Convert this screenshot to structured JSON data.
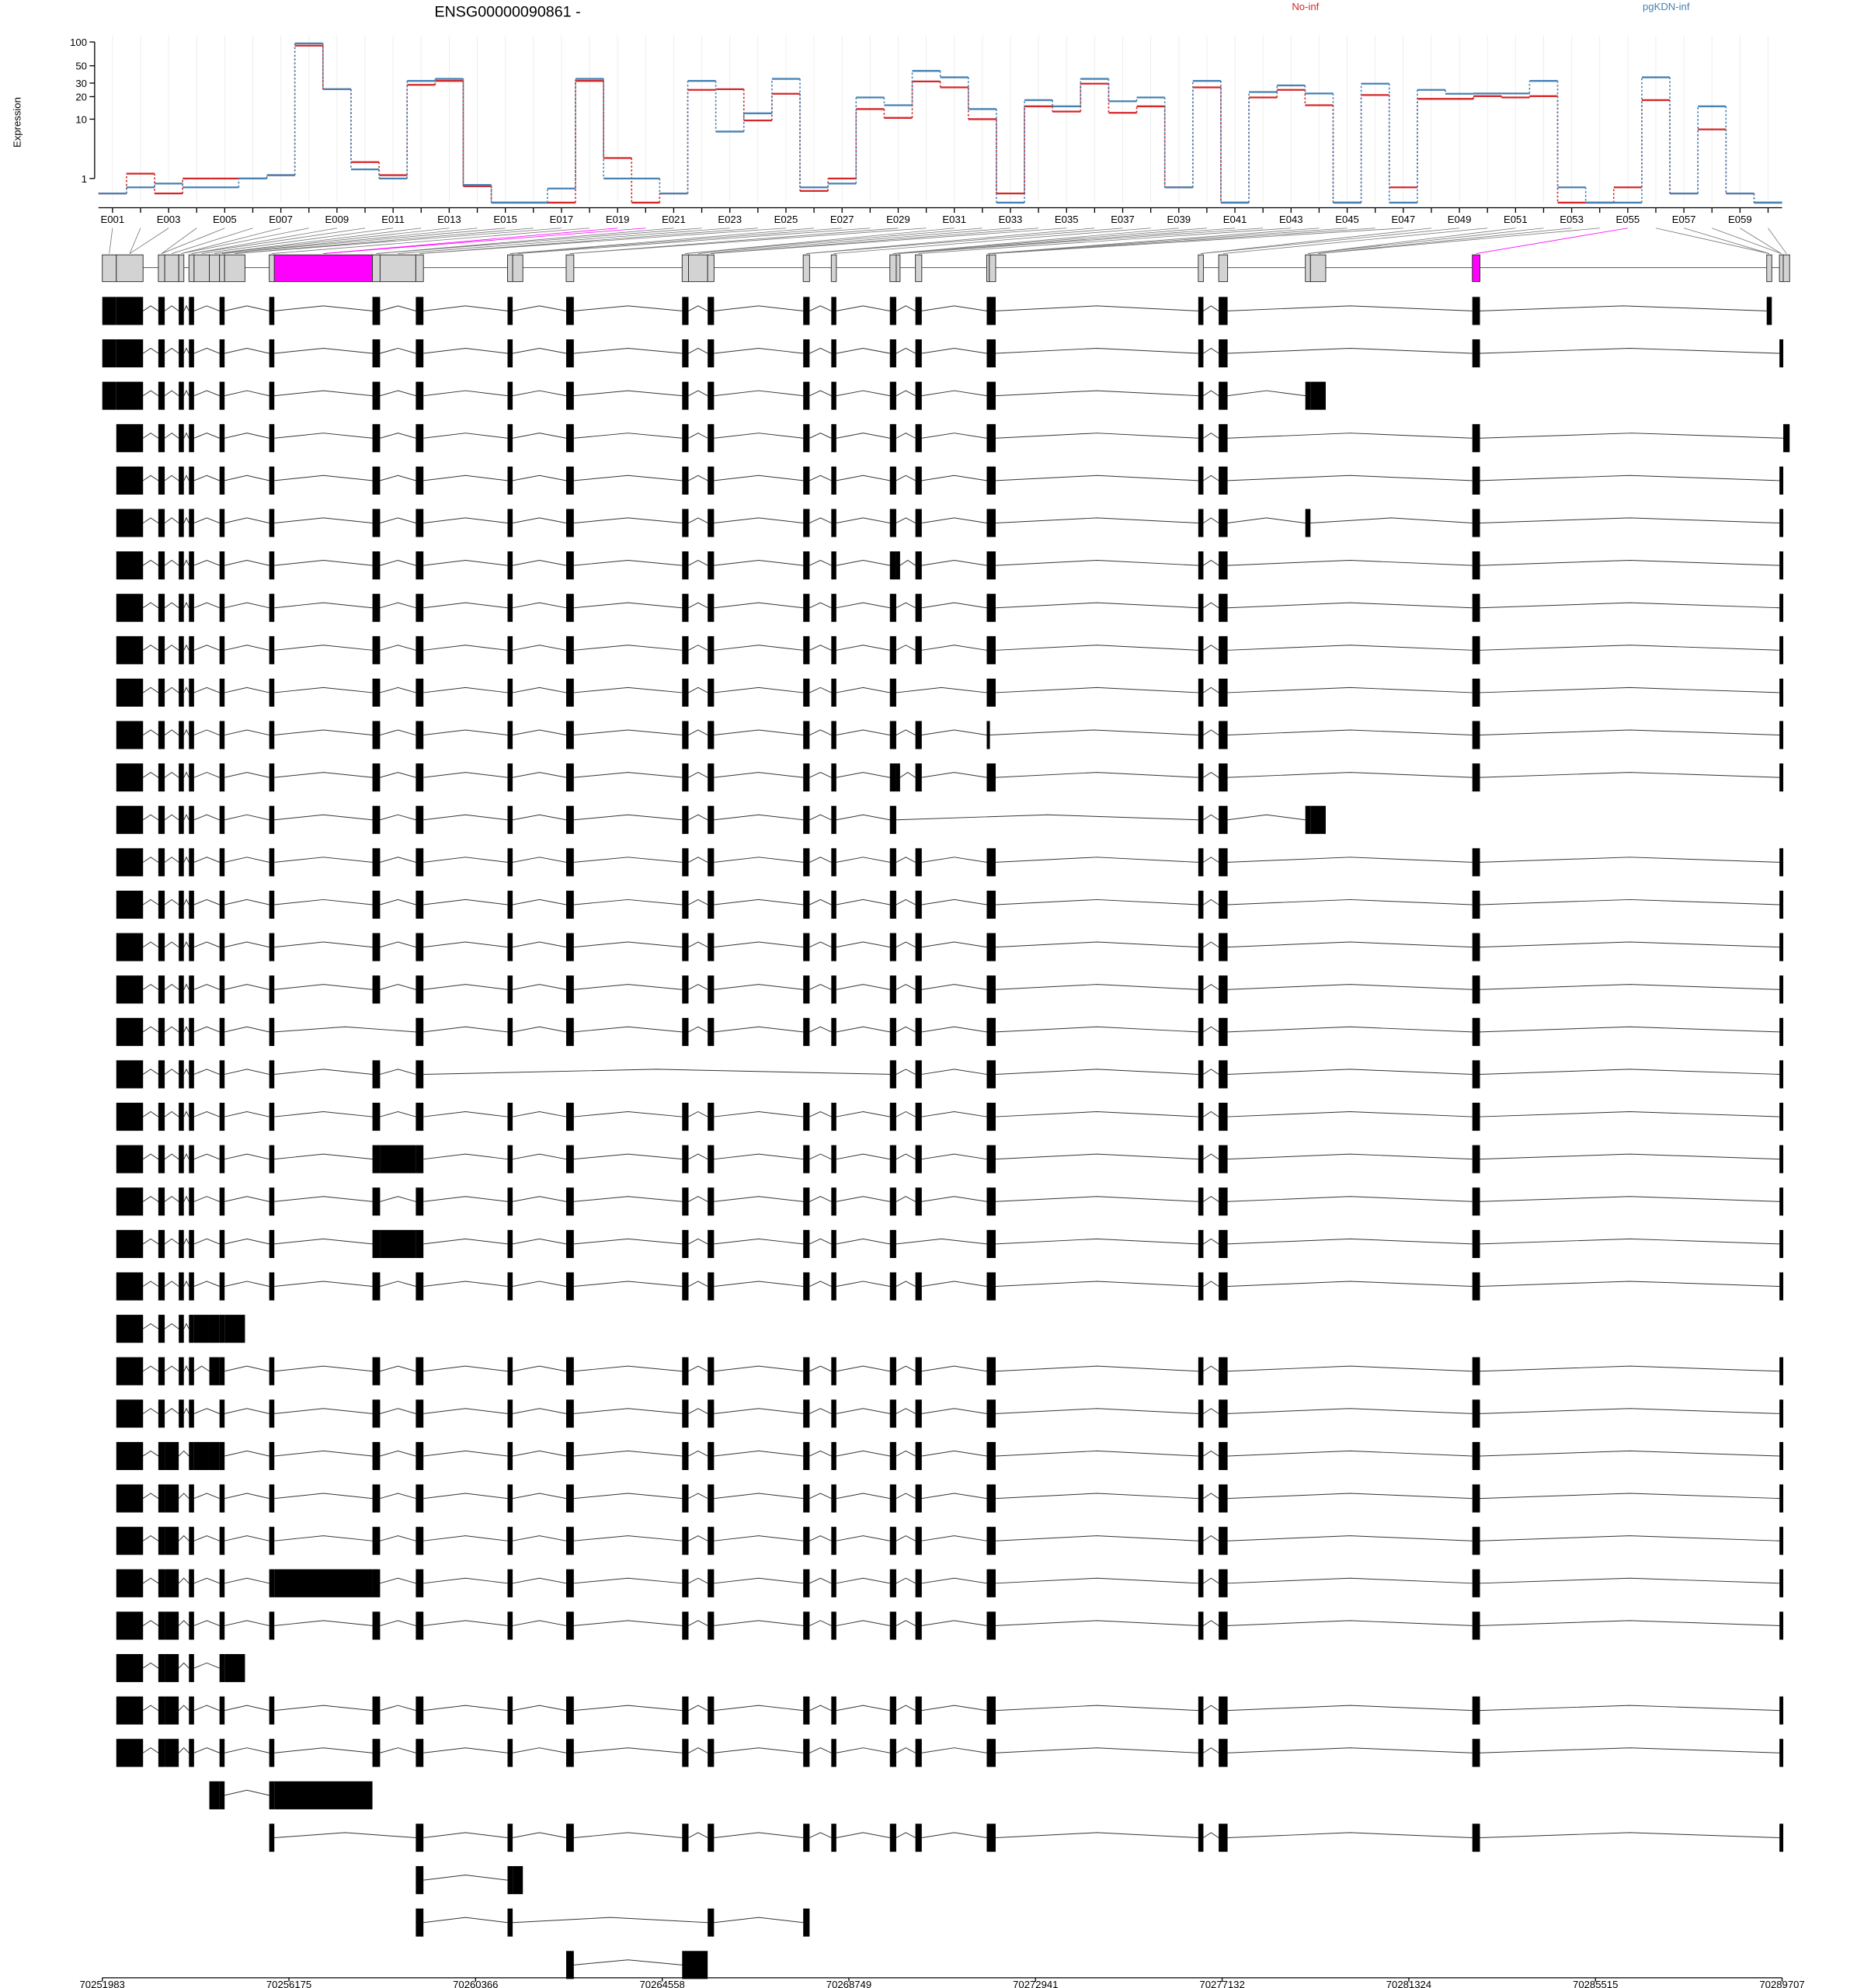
{
  "chart_data": {
    "type": "line",
    "title": "ENSG00000090861 -",
    "y_label": "Expression",
    "categories": [
      "E001",
      null,
      "E003",
      null,
      "E005",
      null,
      "E007",
      null,
      "E009",
      null,
      "E011",
      null,
      "E013",
      null,
      "E015",
      null,
      "E017",
      null,
      "E019",
      null,
      "E021",
      null,
      "E023",
      null,
      "E025",
      null,
      "E027",
      null,
      "E029",
      null,
      "E031",
      null,
      "E033",
      null,
      "E035",
      null,
      "E037",
      null,
      "E039",
      null,
      "E041",
      null,
      "E043",
      null,
      "E045",
      null,
      "E047",
      null,
      "E049",
      null,
      "E051",
      null,
      "E053",
      null,
      "E055",
      null,
      "E057",
      null,
      "E059",
      null
    ],
    "series": [
      {
        "name": "No-inf",
        "color": "#d62728",
        "values": [
          0.3,
          1.3,
          0.3,
          1.0,
          1.0,
          1.0,
          1.2,
          90,
          25,
          2.2,
          1.2,
          28.5,
          32,
          0.6,
          0,
          0,
          0,
          32,
          2.6,
          0,
          0.3,
          24.5,
          25,
          9.6,
          21.8,
          0.4,
          1.0,
          13.7,
          10.4,
          31.5,
          26.4,
          10,
          0.3,
          14.9,
          12.7,
          29.5,
          12.2,
          14.9,
          0.55,
          26.4,
          0,
          19.5,
          24.5,
          15.4,
          0,
          21,
          0.55,
          18.7,
          18.7,
          20.3,
          19.5,
          20.3,
          0,
          0,
          0.55,
          18,
          0.3,
          7.2,
          0.3,
          0
        ]
      },
      {
        "name": "pgKDN-inf",
        "color": "#4682b4",
        "values": [
          0.3,
          0.55,
          0.73,
          0.55,
          0.55,
          1.0,
          1.2,
          96,
          25,
          1.6,
          1.0,
          32,
          34,
          0.66,
          0,
          0,
          0.5,
          34,
          1.0,
          1.0,
          0.3,
          32,
          6.7,
          12,
          34,
          0.55,
          0.73,
          19.5,
          15.4,
          43,
          35.6,
          13.7,
          0,
          18,
          14.9,
          34,
          17.4,
          19.5,
          0.55,
          32,
          0,
          23,
          28,
          22,
          0,
          29.5,
          0,
          24.5,
          21.8,
          22,
          22,
          32,
          0.55,
          0,
          0,
          35.6,
          0.3,
          14.9,
          0.3,
          0
        ]
      }
    ],
    "ylim": [
      0,
      120
    ],
    "yticks": [
      1,
      10,
      20,
      30,
      50,
      100
    ],
    "yscale": "log1p",
    "grid": true,
    "legend": "top-right"
  },
  "gene_model": {
    "xlim": [
      70251983,
      70289707
    ],
    "xticks": [
      70251983,
      70256175,
      70260366,
      70264558,
      70268749,
      70272941,
      70277132,
      70281324,
      70285515,
      70289707
    ],
    "exon_bins": [
      [
        70251983,
        70252298
      ],
      [
        70252298,
        70252899
      ],
      [
        70253242,
        70253385
      ],
      [
        70253385,
        70253700
      ],
      [
        70253700,
        70253815
      ],
      [
        70253929,
        70254044
      ],
      [
        70254044,
        70254387
      ],
      [
        70254387,
        70254616
      ],
      [
        70254616,
        70254730
      ],
      [
        70254730,
        70255188
      ],
      [
        70255732,
        70255847
      ],
      [
        70255847,
        70258050
      ],
      [
        70258050,
        70258222
      ],
      [
        70258222,
        70259024
      ],
      [
        70259024,
        70259195
      ],
      [
        70261084,
        70261199
      ],
      [
        70261199,
        70261428
      ],
      [
        70262401,
        70262572
      ],
      [
        70265005,
        70265148
      ],
      [
        70265148,
        70265578
      ],
      [
        70265578,
        70265721
      ],
      [
        70267724,
        70267867
      ],
      [
        70268354,
        70268468
      ],
      [
        70269670,
        70269813
      ],
      [
        70269813,
        70269899
      ],
      [
        70270243,
        70270386
      ],
      [
        70271845,
        70271903
      ],
      [
        70271903,
        70272046
      ],
      [
        70276596,
        70276711
      ],
      [
        70277054,
        70277254
      ],
      [
        70279000,
        70279115
      ],
      [
        70279115,
        70279458
      ],
      [
        70282750,
        70282921
      ],
      [
        70289361,
        70289475
      ],
      [
        70289647,
        70289733
      ],
      [
        70289733,
        70289876
      ]
    ],
    "highlighted_bins": [
      11,
      32
    ],
    "highlight_color": "#ff00ff",
    "transcripts": [
      [
        0,
        1,
        2,
        4,
        5,
        8,
        10,
        12,
        14,
        15,
        17,
        18,
        20,
        21,
        22,
        23,
        25,
        26,
        27,
        28,
        29,
        32,
        33
      ],
      [
        0,
        1,
        2,
        4,
        5,
        8,
        10,
        12,
        14,
        15,
        17,
        18,
        20,
        21,
        22,
        23,
        25,
        26,
        27,
        28,
        29,
        32,
        34
      ],
      [
        0,
        1,
        2,
        4,
        5,
        8,
        10,
        12,
        14,
        15,
        17,
        18,
        20,
        21,
        22,
        23,
        25,
        26,
        27,
        28,
        29,
        30,
        31
      ],
      [
        1,
        2,
        4,
        5,
        8,
        10,
        12,
        14,
        15,
        17,
        18,
        20,
        21,
        22,
        23,
        25,
        26,
        27,
        28,
        29,
        32,
        35
      ],
      [
        1,
        2,
        4,
        5,
        8,
        10,
        12,
        14,
        15,
        17,
        18,
        20,
        21,
        22,
        23,
        25,
        26,
        27,
        28,
        29,
        32,
        34
      ],
      [
        1,
        2,
        4,
        5,
        8,
        10,
        12,
        14,
        15,
        17,
        18,
        20,
        21,
        22,
        23,
        25,
        26,
        27,
        28,
        29,
        30,
        32,
        34
      ],
      [
        1,
        2,
        4,
        5,
        8,
        10,
        12,
        14,
        15,
        17,
        18,
        20,
        21,
        22,
        23,
        24,
        25,
        26,
        27,
        28,
        29,
        32,
        34
      ],
      [
        1,
        2,
        4,
        5,
        8,
        10,
        12,
        14,
        15,
        17,
        18,
        20,
        21,
        22,
        23,
        25,
        26,
        27,
        28,
        29,
        32,
        34
      ],
      [
        1,
        2,
        4,
        5,
        8,
        10,
        12,
        14,
        15,
        17,
        18,
        20,
        21,
        22,
        23,
        25,
        26,
        27,
        28,
        29,
        32,
        34
      ],
      [
        1,
        2,
        4,
        5,
        8,
        10,
        12,
        14,
        15,
        17,
        18,
        20,
        21,
        22,
        23,
        26,
        27,
        28,
        29,
        32,
        34
      ],
      [
        1,
        2,
        4,
        5,
        8,
        10,
        12,
        14,
        15,
        17,
        18,
        20,
        21,
        22,
        23,
        25,
        26,
        28,
        29,
        32,
        34
      ],
      [
        1,
        2,
        4,
        5,
        8,
        10,
        12,
        14,
        15,
        17,
        18,
        20,
        21,
        22,
        23,
        24,
        25,
        26,
        27,
        28,
        29,
        32,
        34
      ],
      [
        1,
        2,
        4,
        5,
        8,
        10,
        12,
        14,
        15,
        17,
        18,
        20,
        21,
        22,
        23,
        28,
        29,
        30,
        31
      ],
      [
        1,
        2,
        4,
        5,
        8,
        10,
        12,
        14,
        15,
        17,
        18,
        20,
        21,
        22,
        23,
        25,
        26,
        27,
        28,
        29,
        32,
        34
      ],
      [
        1,
        2,
        4,
        5,
        8,
        10,
        12,
        14,
        15,
        17,
        18,
        20,
        21,
        22,
        23,
        25,
        26,
        27,
        28,
        29,
        32,
        34
      ],
      [
        1,
        2,
        4,
        5,
        8,
        10,
        12,
        14,
        15,
        17,
        18,
        20,
        21,
        22,
        23,
        25,
        26,
        27,
        28,
        29,
        32,
        34
      ],
      [
        1,
        2,
        4,
        5,
        8,
        10,
        12,
        14,
        15,
        17,
        18,
        20,
        21,
        22,
        23,
        25,
        26,
        27,
        28,
        29,
        32,
        34
      ],
      [
        1,
        2,
        4,
        5,
        8,
        10,
        14,
        15,
        17,
        18,
        20,
        21,
        22,
        23,
        25,
        26,
        27,
        28,
        29,
        32,
        34
      ],
      [
        1,
        2,
        4,
        5,
        8,
        10,
        12,
        14,
        23,
        25,
        26,
        27,
        28,
        29,
        32,
        34
      ],
      [
        1,
        2,
        4,
        5,
        8,
        10,
        12,
        14,
        15,
        17,
        18,
        20,
        21,
        22,
        23,
        25,
        26,
        27,
        28,
        29,
        32,
        34
      ],
      [
        1,
        2,
        4,
        5,
        8,
        10,
        12,
        13,
        14,
        15,
        17,
        18,
        20,
        21,
        22,
        23,
        25,
        26,
        27,
        28,
        29,
        32,
        34
      ],
      [
        1,
        2,
        4,
        5,
        8,
        10,
        12,
        14,
        15,
        17,
        18,
        20,
        21,
        22,
        23,
        25,
        26,
        27,
        28,
        29,
        32,
        34
      ],
      [
        1,
        2,
        4,
        5,
        8,
        10,
        12,
        13,
        14,
        15,
        17,
        18,
        20,
        21,
        22,
        23,
        26,
        27,
        28,
        29,
        32,
        34
      ],
      [
        1,
        2,
        4,
        5,
        8,
        10,
        12,
        14,
        15,
        17,
        18,
        20,
        21,
        22,
        23,
        25,
        26,
        27,
        28,
        29,
        32,
        34
      ],
      [
        1,
        2,
        4,
        5,
        6,
        7,
        8,
        9
      ],
      [
        1,
        2,
        4,
        5,
        7,
        8,
        10,
        12,
        14,
        15,
        17,
        18,
        20,
        21,
        22,
        23,
        25,
        26,
        27,
        28,
        29,
        32,
        34
      ],
      [
        1,
        2,
        4,
        5,
        8,
        10,
        12,
        14,
        15,
        17,
        18,
        20,
        21,
        22,
        23,
        25,
        26,
        27,
        28,
        29,
        32,
        34
      ],
      [
        1,
        2,
        3,
        5,
        6,
        7,
        8,
        10,
        12,
        14,
        15,
        17,
        18,
        20,
        21,
        22,
        23,
        25,
        26,
        27,
        28,
        29,
        32,
        34
      ],
      [
        1,
        2,
        3,
        5,
        8,
        10,
        12,
        14,
        15,
        17,
        18,
        20,
        21,
        22,
        23,
        25,
        26,
        27,
        28,
        29,
        32,
        34
      ],
      [
        1,
        2,
        3,
        5,
        8,
        10,
        12,
        14,
        15,
        17,
        18,
        20,
        21,
        22,
        23,
        25,
        26,
        27,
        28,
        29,
        32,
        34
      ],
      [
        1,
        2,
        3,
        5,
        8,
        10,
        11,
        12,
        14,
        15,
        17,
        18,
        20,
        21,
        22,
        23,
        25,
        26,
        27,
        28,
        29,
        32,
        34
      ],
      [
        1,
        2,
        3,
        5,
        8,
        10,
        12,
        14,
        15,
        17,
        18,
        20,
        21,
        22,
        23,
        25,
        26,
        27,
        28,
        29,
        32,
        34
      ],
      [
        1,
        2,
        3,
        5,
        8,
        9
      ],
      [
        1,
        2,
        3,
        5,
        8,
        10,
        12,
        14,
        15,
        17,
        18,
        20,
        21,
        22,
        23,
        25,
        26,
        27,
        28,
        29,
        32,
        34
      ],
      [
        1,
        2,
        3,
        5,
        8,
        10,
        12,
        14,
        15,
        17,
        18,
        20,
        21,
        22,
        23,
        25,
        26,
        27,
        28,
        29,
        32,
        34
      ],
      [
        7,
        8,
        10,
        11
      ],
      [
        10,
        14,
        15,
        17,
        18,
        20,
        21,
        22,
        23,
        25,
        26,
        27,
        28,
        29,
        32,
        34
      ],
      [
        14,
        15,
        16
      ],
      [
        14,
        15,
        20,
        21
      ],
      [
        17,
        18,
        19
      ]
    ]
  }
}
